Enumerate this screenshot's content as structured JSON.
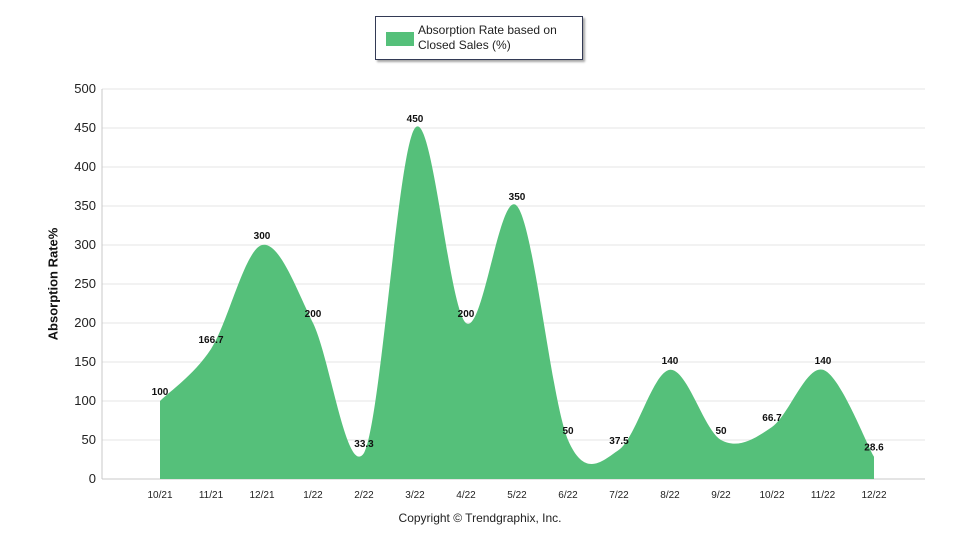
{
  "chart_data": {
    "type": "area",
    "categories": [
      "10/21",
      "11/21",
      "12/21",
      "1/22",
      "2/22",
      "3/22",
      "4/22",
      "5/22",
      "6/22",
      "7/22",
      "8/22",
      "9/22",
      "10/22",
      "11/22",
      "12/22"
    ],
    "series": [
      {
        "name": "Absorption Rate based on Closed Sales (%)",
        "values": [
          100,
          166.7,
          300,
          200,
          33.3,
          450,
          200,
          350,
          50,
          37.5,
          140,
          50,
          66.7,
          140,
          28.6
        ],
        "labels": [
          "100",
          "166.7",
          "300",
          "200",
          "33.3",
          "450",
          "200",
          "350",
          "50",
          "37.5",
          "140",
          "50",
          "66.7",
          "140",
          "28.6"
        ]
      }
    ],
    "ylabel": "Absorption Rate%",
    "xlabel": "",
    "ylim": [
      0,
      500
    ],
    "yticks": [
      0,
      50,
      100,
      150,
      200,
      250,
      300,
      350,
      400,
      450,
      500
    ],
    "grid": true,
    "legend_position": "top-center"
  },
  "legend": {
    "label": "Absorption Rate based on Closed Sales (%)"
  },
  "footer": {
    "copyright": "Copyright © Trendgraphix, Inc."
  },
  "colors": {
    "area": "#55c07a",
    "grid": "#e4e4e4",
    "axis": "#c8c8c8"
  }
}
